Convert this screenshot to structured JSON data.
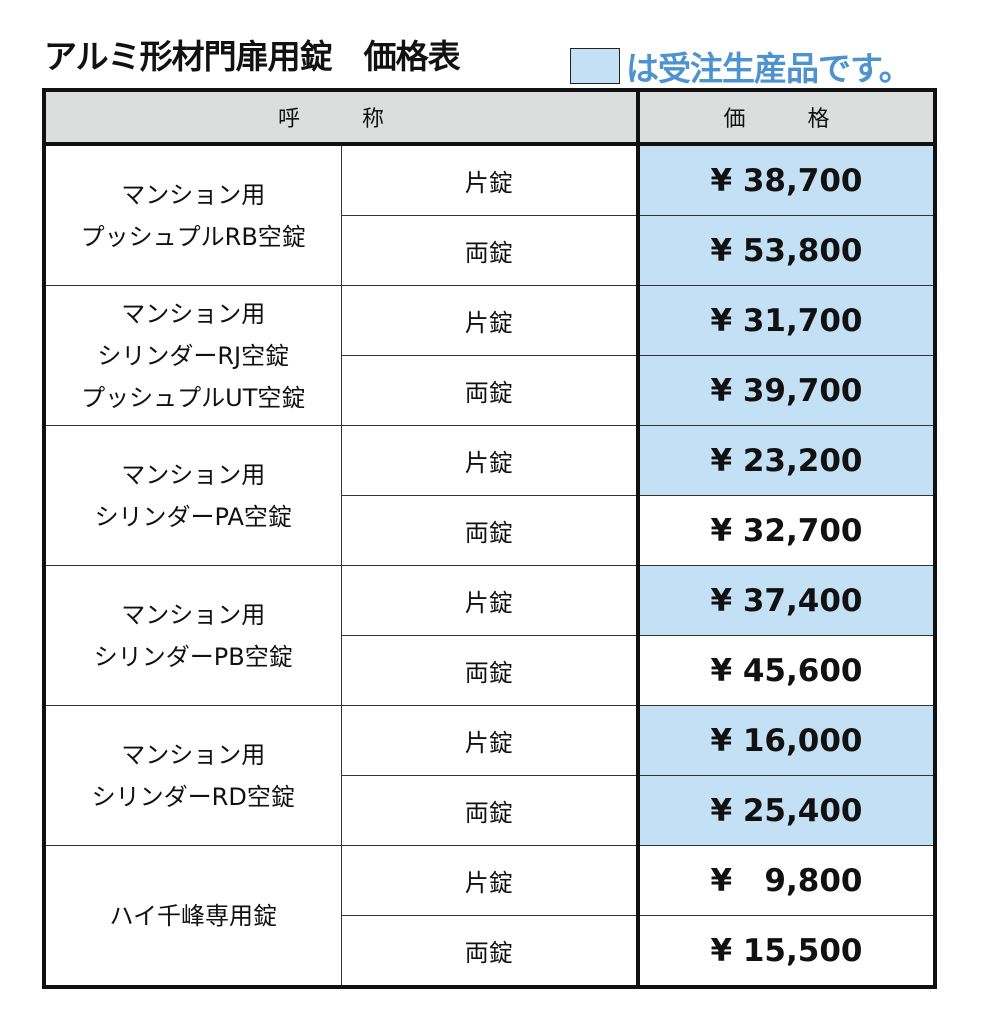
{
  "title": "アルミ形材門扉用錠　価格表",
  "legend": {
    "text": "は受注生産品です。",
    "swatch_color": "#c3e0f5"
  },
  "header": {
    "name": "呼　称",
    "price": "価　格"
  },
  "groups": [
    {
      "name_lines": [
        "マンション用",
        "プッシュプルRB空錠"
      ],
      "rows": [
        {
          "type": "片錠",
          "price": "¥ 38,700",
          "made_to_order": true
        },
        {
          "type": "両錠",
          "price": "¥ 53,800",
          "made_to_order": true
        }
      ]
    },
    {
      "name_lines": [
        "マンション用",
        "シリンダーRJ空錠",
        "プッシュプルUT空錠"
      ],
      "rows": [
        {
          "type": "片錠",
          "price": "¥ 31,700",
          "made_to_order": true
        },
        {
          "type": "両錠",
          "price": "¥ 39,700",
          "made_to_order": true
        }
      ]
    },
    {
      "name_lines": [
        "マンション用",
        "シリンダーPA空錠"
      ],
      "rows": [
        {
          "type": "片錠",
          "price": "¥ 23,200",
          "made_to_order": true
        },
        {
          "type": "両錠",
          "price": "¥ 32,700",
          "made_to_order": false
        }
      ]
    },
    {
      "name_lines": [
        "マンション用",
        "シリンダーPB空錠"
      ],
      "rows": [
        {
          "type": "片錠",
          "price": "¥ 37,400",
          "made_to_order": true
        },
        {
          "type": "両錠",
          "price": "¥ 45,600",
          "made_to_order": false
        }
      ]
    },
    {
      "name_lines": [
        "マンション用",
        "シリンダーRD空錠"
      ],
      "rows": [
        {
          "type": "片錠",
          "price": "¥ 16,000",
          "made_to_order": true
        },
        {
          "type": "両錠",
          "price": "¥ 25,400",
          "made_to_order": true
        }
      ]
    },
    {
      "name_lines": [
        "ハイ千峰専用錠"
      ],
      "rows": [
        {
          "type": "片錠",
          "price": "¥   9,800",
          "made_to_order": false
        },
        {
          "type": "両錠",
          "price": "¥ 15,500",
          "made_to_order": false
        }
      ]
    }
  ]
}
